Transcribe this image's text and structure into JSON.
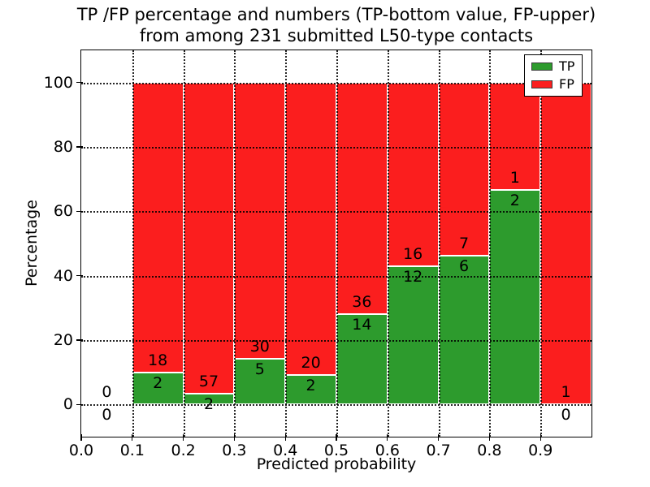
{
  "chart_data": {
    "type": "bar",
    "stacked": true,
    "title_line1": "TP /FP percentage and numbers (TP-bottom value, FP-upper)",
    "title_line2": "from among 231 submitted L50-type contacts",
    "title": "TP /FP percentage and numbers (TP-bottom value, FP-upper)\nfrom among 231 submitted L50-type contacts",
    "xlabel": "Predicted probability",
    "ylabel": "Percentage",
    "total_contacts": 231,
    "xlim": [
      0.0,
      1.0
    ],
    "ylim": [
      -10,
      110
    ],
    "grid": true,
    "x_ticks": [
      0.0,
      0.1,
      0.2,
      0.3,
      0.4,
      0.5,
      0.6,
      0.7,
      0.8,
      0.9
    ],
    "x_tick_labels": [
      "0.0",
      "0.1",
      "0.2",
      "0.3",
      "0.4",
      "0.5",
      "0.6",
      "0.7",
      "0.8",
      "0.9"
    ],
    "y_ticks": [
      0,
      20,
      40,
      60,
      80,
      100
    ],
    "y_tick_labels": [
      "0",
      "20",
      "40",
      "60",
      "80",
      "100"
    ],
    "legend": [
      {
        "label": "TP",
        "color": "#2d9b2d"
      },
      {
        "label": "FP",
        "color": "#fb1e1e"
      }
    ],
    "colors": {
      "tp": "#2d9b2d",
      "fp": "#fb1e1e",
      "bar_edge": "#ffffff",
      "grid": "#000000",
      "text": "#000000"
    },
    "legend_position": "upper right",
    "bins": [
      {
        "range": [
          0.0,
          0.1
        ],
        "tp": 0,
        "fp": 0,
        "tp_pct": 0,
        "fp_pct": 0
      },
      {
        "range": [
          0.1,
          0.2
        ],
        "tp": 2,
        "fp": 18,
        "tp_pct": 10.0,
        "fp_pct": 90.0
      },
      {
        "range": [
          0.2,
          0.3
        ],
        "tp": 2,
        "fp": 57,
        "tp_pct": 3.39,
        "fp_pct": 96.61
      },
      {
        "range": [
          0.3,
          0.4
        ],
        "tp": 5,
        "fp": 30,
        "tp_pct": 14.29,
        "fp_pct": 85.71
      },
      {
        "range": [
          0.4,
          0.5
        ],
        "tp": 2,
        "fp": 20,
        "tp_pct": 9.09,
        "fp_pct": 90.91
      },
      {
        "range": [
          0.5,
          0.6
        ],
        "tp": 14,
        "fp": 36,
        "tp_pct": 28.0,
        "fp_pct": 72.0
      },
      {
        "range": [
          0.6,
          0.7
        ],
        "tp": 12,
        "fp": 16,
        "tp_pct": 42.86,
        "fp_pct": 57.14
      },
      {
        "range": [
          0.7,
          0.8
        ],
        "tp": 6,
        "fp": 7,
        "tp_pct": 46.15,
        "fp_pct": 53.85
      },
      {
        "range": [
          0.8,
          0.9
        ],
        "tp": 2,
        "fp": 1,
        "tp_pct": 66.67,
        "fp_pct": 33.33
      },
      {
        "range": [
          0.9,
          1.0
        ],
        "tp": 0,
        "fp": 1,
        "tp_pct": 0,
        "fp_pct": 100.0
      }
    ]
  }
}
